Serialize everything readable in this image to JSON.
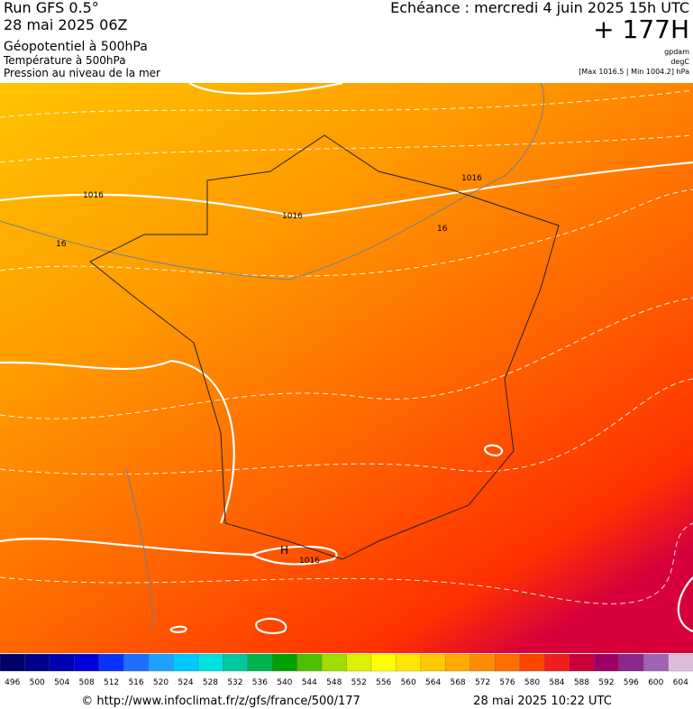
{
  "header": {
    "run": "Run GFS 0.5°",
    "run_date": "28 mai 2025 06Z",
    "layer1": "Géopotentiel à 500hPa",
    "layer2": "Température à 500hPa",
    "layer3": "Pression au niveau de la mer",
    "valid": "Echéance : mercredi 4 juin 2025 15h UTC",
    "lead": "+ 177H",
    "unit1": "gpdam",
    "unit2": "degC",
    "range": "[Max 1016.5 | Min 1004.2] hPa"
  },
  "map": {
    "labels": [
      "1016",
      "1016",
      "1016",
      "16",
      "16",
      "H",
      "1016"
    ]
  },
  "scale": {
    "labels": [
      496,
      500,
      504,
      508,
      512,
      516,
      520,
      524,
      528,
      532,
      536,
      540,
      544,
      548,
      552,
      556,
      560,
      564,
      568,
      572,
      576,
      580,
      584,
      588,
      592,
      596,
      600,
      604
    ],
    "colors": [
      "#00006a",
      "#00008c",
      "#0000b4",
      "#0000dc",
      "#0a32ff",
      "#1e6eff",
      "#1ea0ff",
      "#00c8ff",
      "#00e0e0",
      "#00c8a0",
      "#00b450",
      "#00a000",
      "#50be00",
      "#a0dc00",
      "#dcf000",
      "#ffff00",
      "#ffe600",
      "#ffc800",
      "#ffaa00",
      "#ff8c00",
      "#ff6e00",
      "#ff4600",
      "#f01e1e",
      "#c8003c",
      "#a00064",
      "#8c288c",
      "#a064b4",
      "#dcbedc"
    ]
  },
  "footer": {
    "url": "© http://www.infoclimat.fr/z/gfs/france/500/177",
    "stamp": "28 mai 2025 10:22 UTC"
  }
}
